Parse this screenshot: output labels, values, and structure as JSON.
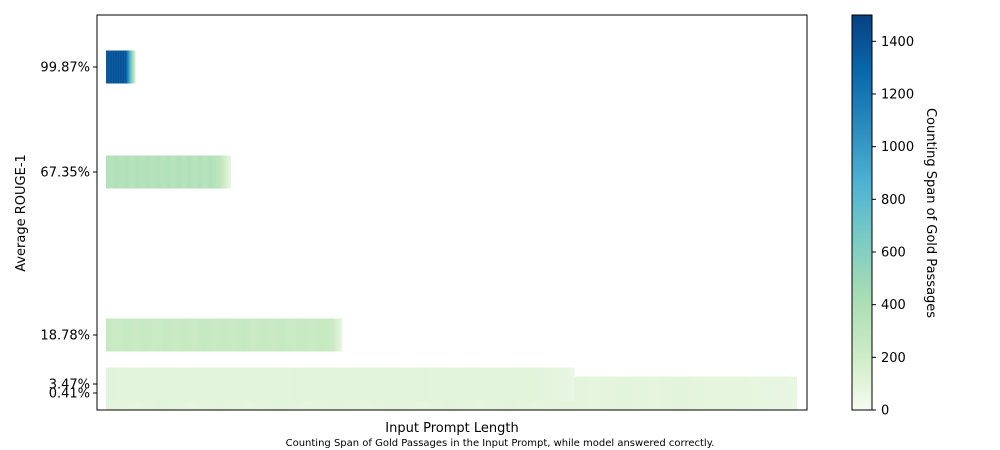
{
  "chart_data": {
    "type": "heatmap",
    "xlabel": "Input Prompt Length",
    "ylabel": "Average ROUGE-1",
    "caption": "Counting Span of Gold Passages in the Input Prompt, while model answered correctly.",
    "colorbar": {
      "label": "Counting Span of Gold Passages",
      "range": [
        0,
        1500
      ],
      "ticks": [
        "0",
        "200",
        "400",
        "600",
        "800",
        "1000",
        "1200",
        "1400"
      ],
      "colormap": [
        "#f7fcf0",
        "#ccebc5",
        "#a8ddb5",
        "#7bccc4",
        "#4eb3d3",
        "#2b8cbe",
        "#0868ac",
        "#084081"
      ]
    },
    "rows": [
      {
        "label": "99.87%",
        "value": 99.87,
        "length": 0.043,
        "span": 1450,
        "fade": 0.35
      },
      {
        "label": "67.35%",
        "value": 67.35,
        "length": 0.181,
        "span": 380,
        "fade": 0.12
      },
      {
        "label": "18.78%",
        "value": 18.78,
        "length": 0.342,
        "span": 250,
        "fade": 0.03
      },
      {
        "label": "3.47%",
        "value": 3.47,
        "length": 0.678,
        "span": 110,
        "fade": 0.08
      },
      {
        "label": "0.41%",
        "value": 0.41,
        "length": 1.0,
        "span": 100,
        "fade": 0.12
      }
    ]
  }
}
